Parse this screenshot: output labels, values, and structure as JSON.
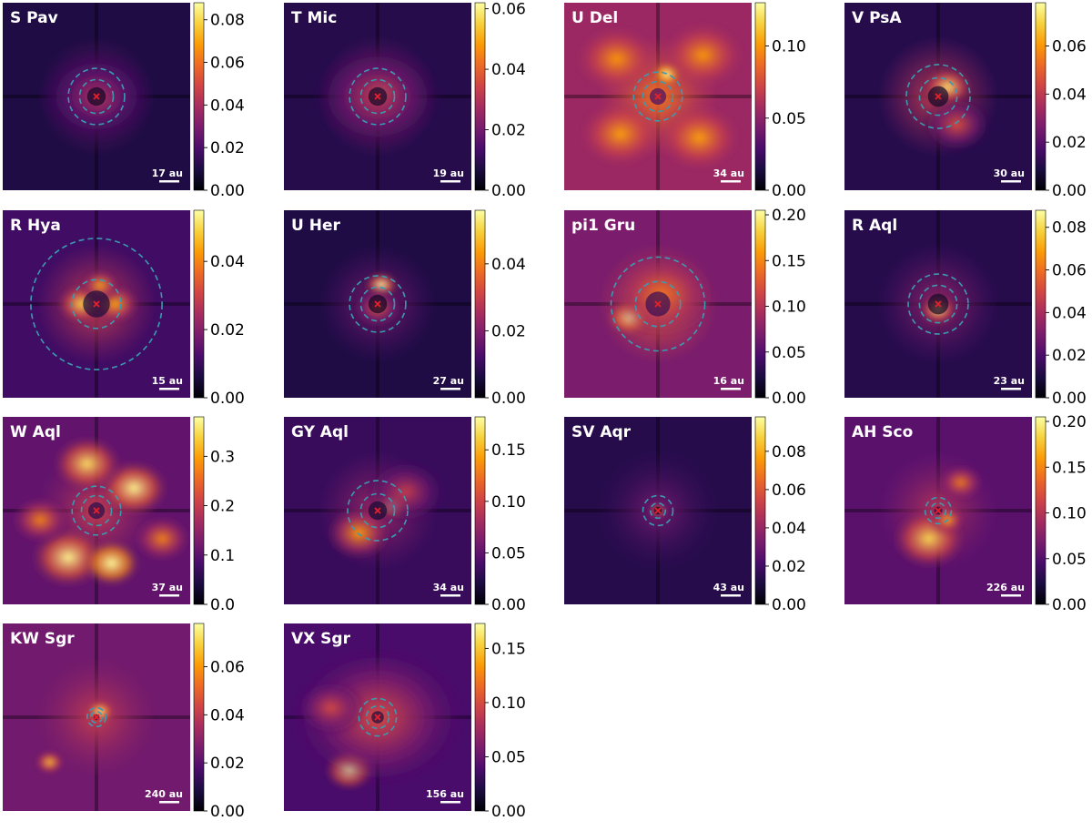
{
  "chart_data": [
    {
      "type": "heatmap",
      "title": "S Pav",
      "scale_label": "17 au",
      "colorbar_ticks": [
        "0.00",
        "0.02",
        "0.04",
        "0.06",
        "0.08"
      ],
      "colorbar_range": [
        0,
        0.088
      ],
      "background": 0.12,
      "halo": 0.15,
      "blobs": [
        [
          0.52,
          0.52,
          0.07,
          0.55
        ],
        [
          0.5,
          0.5,
          0.2,
          0.18
        ]
      ],
      "inner_radius": 0.09,
      "outer_radius": 0.15
    },
    {
      "type": "heatmap",
      "title": "T Mic",
      "scale_label": "19 au",
      "colorbar_ticks": [
        "0.00",
        "0.02",
        "0.04",
        "0.06"
      ],
      "colorbar_range": [
        0,
        0.062
      ],
      "background": 0.14,
      "halo": 0.2,
      "blobs": [
        [
          0.52,
          0.47,
          0.07,
          0.7
        ],
        [
          0.5,
          0.5,
          0.22,
          0.22
        ]
      ],
      "inner_radius": 0.09,
      "outer_radius": 0.15
    },
    {
      "type": "heatmap",
      "title": "U Del",
      "scale_label": "34 au",
      "colorbar_ticks": [
        "0.00",
        "0.05",
        "0.10"
      ],
      "colorbar_range": [
        0,
        0.13
      ],
      "background": 0.42,
      "halo": 0.12,
      "blobs": [
        [
          0.55,
          0.38,
          0.05,
          0.6
        ],
        [
          0.3,
          0.7,
          0.14,
          0.22
        ],
        [
          0.72,
          0.72,
          0.14,
          0.22
        ],
        [
          0.28,
          0.3,
          0.14,
          0.2
        ],
        [
          0.74,
          0.28,
          0.14,
          0.2
        ]
      ],
      "inner_radius": 0.08,
      "outer_radius": 0.13
    },
    {
      "type": "heatmap",
      "title": "V PsA",
      "scale_label": "30 au",
      "colorbar_ticks": [
        "0.00",
        "0.02",
        "0.04",
        "0.06"
      ],
      "colorbar_range": [
        0,
        0.078
      ],
      "background": 0.14,
      "halo": 0.25,
      "blobs": [
        [
          0.55,
          0.45,
          0.09,
          0.65
        ],
        [
          0.6,
          0.65,
          0.12,
          0.3
        ]
      ],
      "inner_radius": 0.1,
      "outer_radius": 0.17
    },
    {
      "type": "heatmap",
      "title": "R Hya",
      "scale_label": "15 au",
      "colorbar_ticks": [
        "0.00",
        "0.02",
        "0.04"
      ],
      "colorbar_range": [
        0,
        0.055
      ],
      "background": 0.2,
      "halo": 0.22,
      "blobs": [
        [
          0.42,
          0.5,
          0.09,
          0.55
        ],
        [
          0.6,
          0.5,
          0.09,
          0.45
        ],
        [
          0.52,
          0.4,
          0.07,
          0.45
        ]
      ],
      "inner_radius": 0.13,
      "outer_radius": 0.35
    },
    {
      "type": "heatmap",
      "title": "U Her",
      "scale_label": "27 au",
      "colorbar_ticks": [
        "0.00",
        "0.02",
        "0.04"
      ],
      "colorbar_range": [
        0,
        0.056
      ],
      "background": 0.12,
      "halo": 0.1,
      "blobs": [
        [
          0.52,
          0.4,
          0.06,
          0.75
        ],
        [
          0.5,
          0.52,
          0.09,
          0.35
        ]
      ],
      "inner_radius": 0.09,
      "outer_radius": 0.15
    },
    {
      "type": "heatmap",
      "title": "pi1 Gru",
      "scale_label": "16 au",
      "colorbar_ticks": [
        "0.00",
        "0.05",
        "0.10",
        "0.15",
        "0.20"
      ],
      "colorbar_range": [
        0,
        0.205
      ],
      "background": 0.34,
      "halo": 0.18,
      "blobs": [
        [
          0.35,
          0.57,
          0.08,
          0.5
        ],
        [
          0.52,
          0.45,
          0.18,
          0.2
        ]
      ],
      "inner_radius": 0.12,
      "outer_radius": 0.25
    },
    {
      "type": "heatmap",
      "title": "R Aql",
      "scale_label": "23 au",
      "colorbar_ticks": [
        "0.00",
        "0.02",
        "0.04",
        "0.06",
        "0.08"
      ],
      "colorbar_range": [
        0,
        0.088
      ],
      "background": 0.14,
      "halo": 0.12,
      "blobs": [
        [
          0.5,
          0.53,
          0.07,
          0.65
        ]
      ],
      "inner_radius": 0.1,
      "outer_radius": 0.16
    },
    {
      "type": "heatmap",
      "title": "W Aql",
      "scale_label": "37 au",
      "colorbar_ticks": [
        "0.0",
        "0.1",
        "0.2",
        "0.3"
      ],
      "colorbar_range": [
        0,
        0.38
      ],
      "background": 0.28,
      "halo": 0.1,
      "blobs": [
        [
          0.35,
          0.75,
          0.13,
          0.55
        ],
        [
          0.58,
          0.78,
          0.1,
          0.75
        ],
        [
          0.7,
          0.38,
          0.12,
          0.55
        ],
        [
          0.45,
          0.25,
          0.12,
          0.5
        ],
        [
          0.2,
          0.55,
          0.1,
          0.3
        ],
        [
          0.85,
          0.65,
          0.1,
          0.3
        ]
      ],
      "inner_radius": 0.08,
      "outer_radius": 0.13
    },
    {
      "type": "heatmap",
      "title": "GY Aql",
      "scale_label": "34 au",
      "colorbar_ticks": [
        "0.00",
        "0.05",
        "0.10",
        "0.15"
      ],
      "colorbar_range": [
        0,
        0.182
      ],
      "background": 0.18,
      "halo": 0.12,
      "blobs": [
        [
          0.58,
          0.47,
          0.06,
          0.75
        ],
        [
          0.4,
          0.62,
          0.12,
          0.45
        ],
        [
          0.65,
          0.4,
          0.14,
          0.2
        ]
      ],
      "inner_radius": 0.09,
      "outer_radius": 0.16
    },
    {
      "type": "heatmap",
      "title": "SV Aqr",
      "scale_label": "43 au",
      "colorbar_ticks": [
        "0.00",
        "0.02",
        "0.04",
        "0.06",
        "0.08"
      ],
      "colorbar_range": [
        0,
        0.098
      ],
      "background": 0.14,
      "halo": 0.04,
      "blobs": [
        [
          0.5,
          0.5,
          0.04,
          0.4
        ]
      ],
      "inner_radius": 0.04,
      "outer_radius": 0.08
    },
    {
      "type": "heatmap",
      "title": "AH Sco",
      "scale_label": "226 au",
      "colorbar_ticks": [
        "0.00",
        "0.05",
        "0.10",
        "0.15",
        "0.20"
      ],
      "colorbar_range": [
        0,
        0.205
      ],
      "background": 0.26,
      "halo": 0.08,
      "blobs": [
        [
          0.45,
          0.65,
          0.13,
          0.5
        ],
        [
          0.62,
          0.35,
          0.08,
          0.3
        ],
        [
          0.55,
          0.55,
          0.06,
          0.4
        ]
      ],
      "inner_radius": 0.04,
      "outer_radius": 0.07
    },
    {
      "type": "heatmap",
      "title": "KW Sgr",
      "scale_label": "240 au",
      "colorbar_ticks": [
        "0.00",
        "0.02",
        "0.04",
        "0.06"
      ],
      "colorbar_range": [
        0,
        0.078
      ],
      "background": 0.32,
      "halo": 0.06,
      "blobs": [
        [
          0.52,
          0.47,
          0.05,
          0.5
        ],
        [
          0.25,
          0.74,
          0.05,
          0.4
        ]
      ],
      "inner_radius": 0.03,
      "outer_radius": 0.05
    },
    {
      "type": "heatmap",
      "title": "VX Sgr",
      "scale_label": "156 au",
      "colorbar_ticks": [
        "0.00",
        "0.05",
        "0.10",
        "0.15"
      ],
      "colorbar_range": [
        0,
        0.173
      ],
      "background": 0.22,
      "halo": 0.1,
      "blobs": [
        [
          0.35,
          0.78,
          0.09,
          0.65
        ],
        [
          0.5,
          0.5,
          0.3,
          0.2
        ],
        [
          0.25,
          0.45,
          0.12,
          0.2
        ]
      ],
      "inner_radius": 0.06,
      "outer_radius": 0.1
    }
  ]
}
